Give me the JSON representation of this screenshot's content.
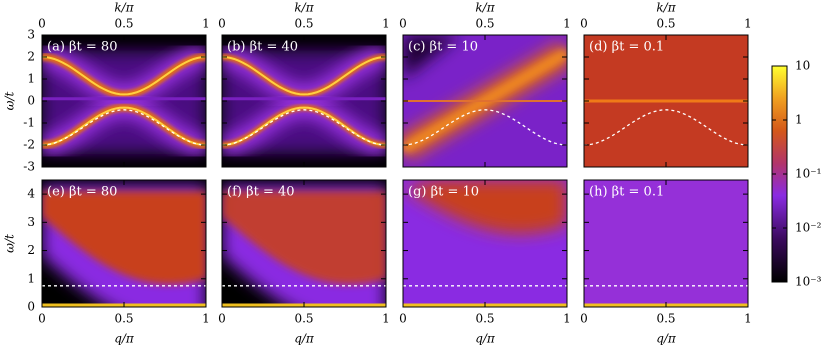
{
  "chart_data": [
    {
      "type": "heatmap",
      "title": "(a) βt = 80",
      "xlabel": "k/π",
      "ylabel": "ω/t",
      "xlim": [
        0,
        1
      ],
      "ylim": [
        -3,
        3
      ],
      "xticks": [
        0,
        0.5,
        1
      ],
      "yticks": [
        -3,
        -2,
        -1,
        0,
        1,
        2,
        3
      ]
    },
    {
      "type": "heatmap",
      "title": "(b) βt = 40",
      "xlabel": "k/π",
      "xlim": [
        0,
        1
      ],
      "ylim": [
        -3,
        3
      ],
      "xticks": [
        0,
        0.5,
        1
      ],
      "yticks": [
        -3,
        -2,
        -1,
        0,
        1,
        2,
        3
      ]
    },
    {
      "type": "heatmap",
      "title": "(c) βt = 10",
      "xlabel": "k/π",
      "xlim": [
        0,
        1
      ],
      "ylim": [
        -3,
        3
      ],
      "xticks": [
        0,
        0.5,
        1
      ],
      "yticks": [
        -3,
        -2,
        -1,
        0,
        1,
        2,
        3
      ]
    },
    {
      "type": "heatmap",
      "title": "(d) βt = 0.1",
      "xlabel": "k/π",
      "xlim": [
        0,
        1
      ],
      "ylim": [
        -3,
        3
      ],
      "xticks": [
        0,
        0.5,
        1
      ],
      "yticks": [
        -3,
        -2,
        -1,
        0,
        1,
        2,
        3
      ]
    },
    {
      "type": "heatmap",
      "title": "(e) βt = 80",
      "xlabel": "q/π",
      "ylabel": "ω/t",
      "xlim": [
        0,
        1
      ],
      "ylim": [
        0,
        4.5
      ],
      "xticks": [
        0,
        0.5,
        1
      ],
      "yticks": [
        0,
        1,
        2,
        3,
        4
      ]
    },
    {
      "type": "heatmap",
      "title": "(f) βt = 40",
      "xlabel": "q/π",
      "xlim": [
        0,
        1
      ],
      "ylim": [
        0,
        4.5
      ],
      "xticks": [
        0,
        0.5,
        1
      ],
      "yticks": [
        0,
        1,
        2,
        3,
        4
      ]
    },
    {
      "type": "heatmap",
      "title": "(g) βt = 10",
      "xlabel": "q/π",
      "xlim": [
        0,
        1
      ],
      "ylim": [
        0,
        4.5
      ],
      "xticks": [
        0,
        0.5,
        1
      ],
      "yticks": [
        0,
        1,
        2,
        3,
        4
      ]
    },
    {
      "type": "heatmap",
      "title": "(h) βt = 0.1",
      "xlabel": "q/π",
      "xlim": [
        0,
        1
      ],
      "ylim": [
        0,
        4.5
      ],
      "xticks": [
        0,
        0.5,
        1
      ],
      "yticks": [
        0,
        1,
        2,
        3,
        4
      ]
    }
  ],
  "colorbar": {
    "scale": "log",
    "lim": [
      0.001,
      10
    ],
    "ticks": [
      {
        "value": 10,
        "label": "10"
      },
      {
        "value": 1,
        "label": "1"
      },
      {
        "value": 0.1,
        "label": "10⁻¹"
      },
      {
        "value": 0.01,
        "label": "10⁻²"
      },
      {
        "value": 0.001,
        "label": "10⁻³"
      }
    ]
  }
}
